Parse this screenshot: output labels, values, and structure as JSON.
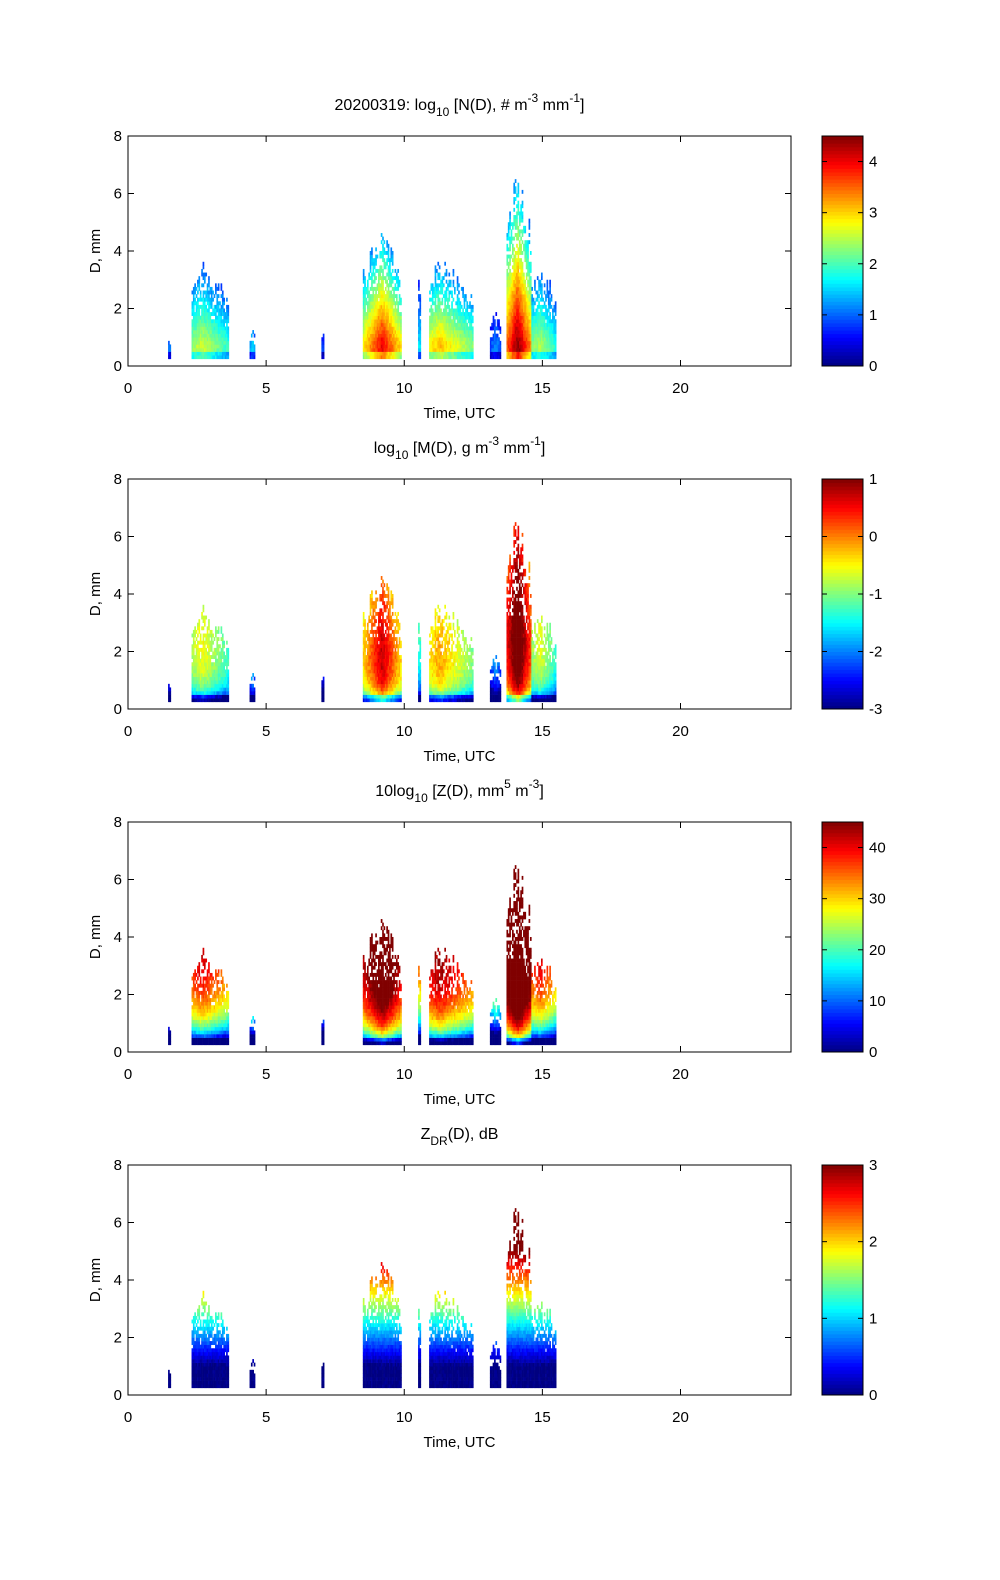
{
  "chart_data": {
    "type": "heatmap",
    "date": "20200319",
    "xlabel": "Time, UTC",
    "ylabel": "D, mm",
    "xlim": [
      0,
      24
    ],
    "ylim": [
      0,
      8
    ],
    "xticks": [
      0,
      5,
      10,
      15,
      20
    ],
    "yticks": [
      0,
      2,
      4,
      6,
      8
    ],
    "colormap": "jet",
    "panels": [
      {
        "id": "N",
        "title": "20200319: log10 [N(D), # m-3 mm-1]",
        "title_segments": [
          {
            "t": "20200319: log"
          },
          {
            "t": "10",
            "s": "sub"
          },
          {
            "t": " [N(D), # m"
          },
          {
            "t": "-3",
            "s": "sup"
          },
          {
            "t": " mm"
          },
          {
            "t": "-1",
            "s": "sup"
          },
          {
            "t": "]"
          }
        ],
        "clim": [
          0,
          4.5
        ],
        "cticks": [
          0,
          1,
          2,
          3,
          4
        ]
      },
      {
        "id": "M",
        "title": "log10 [M(D), g m-3 mm-1]",
        "title_segments": [
          {
            "t": "log"
          },
          {
            "t": "10",
            "s": "sub"
          },
          {
            "t": " [M(D), g m"
          },
          {
            "t": "-3",
            "s": "sup"
          },
          {
            "t": " mm"
          },
          {
            "t": "-1",
            "s": "sup"
          },
          {
            "t": "]"
          }
        ],
        "clim": [
          -3,
          1
        ],
        "cticks": [
          -3,
          -2,
          -1,
          0,
          1
        ]
      },
      {
        "id": "Z",
        "title": "10log10 [Z(D),  mm5 m-3]",
        "title_segments": [
          {
            "t": "10log"
          },
          {
            "t": "10",
            "s": "sub"
          },
          {
            "t": " [Z(D),  mm"
          },
          {
            "t": "5",
            "s": "sup"
          },
          {
            "t": " m"
          },
          {
            "t": "-3",
            "s": "sup"
          },
          {
            "t": "]"
          }
        ],
        "clim": [
          0,
          45
        ],
        "cticks": [
          0,
          10,
          20,
          30,
          40
        ]
      },
      {
        "id": "ZDR",
        "title": "ZDR(D), dB",
        "title_segments": [
          {
            "t": "Z"
          },
          {
            "t": "DR",
            "s": "sub"
          },
          {
            "t": "(D), dB"
          }
        ],
        "clim": [
          0,
          3
        ],
        "cticks": [
          0,
          1,
          2,
          3
        ]
      }
    ],
    "rain_events": [
      {
        "t0": 1.45,
        "t1": 1.55,
        "tp": 1.5,
        "dmax": 1.1,
        "logN0": 1.2
      },
      {
        "t0": 2.3,
        "t1": 3.65,
        "tp": 2.7,
        "dmax": 3.7,
        "logN0": 2.6
      },
      {
        "t0": 4.4,
        "t1": 4.6,
        "tp": 4.5,
        "dmax": 1.5,
        "logN0": 1.6
      },
      {
        "t0": 7.0,
        "t1": 7.1,
        "tp": 7.05,
        "dmax": 1.4,
        "logN0": 1.0
      },
      {
        "t0": 8.5,
        "t1": 9.9,
        "tp": 9.2,
        "dmax": 4.9,
        "logN0": 4.0
      },
      {
        "t0": 10.5,
        "t1": 10.6,
        "tp": 10.55,
        "dmax": 3.7,
        "logN0": 1.8
      },
      {
        "t0": 10.9,
        "t1": 12.5,
        "tp": 11.3,
        "dmax": 3.8,
        "logN0": 3.1
      },
      {
        "t0": 13.1,
        "t1": 13.5,
        "tp": 13.3,
        "dmax": 2.0,
        "logN0": 1.2
      },
      {
        "t0": 13.7,
        "t1": 14.6,
        "tp": 14.1,
        "dmax": 7.0,
        "logN0": 4.5
      },
      {
        "t0": 14.6,
        "t1": 15.5,
        "tp": 14.9,
        "dmax": 3.7,
        "logN0": 2.5
      }
    ]
  }
}
